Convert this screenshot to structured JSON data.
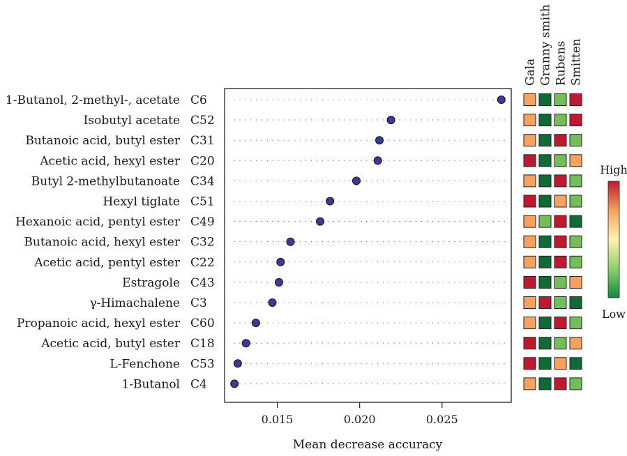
{
  "chart_data": {
    "type": "scatter",
    "xlabel": "Mean decrease accuracy",
    "xlim": [
      0.0118,
      0.0292
    ],
    "xticks": [
      "0.015",
      "0.020",
      "0.025"
    ],
    "xtick_values": [
      0.015,
      0.02,
      0.025
    ],
    "grid": false,
    "point_color": "#3b3a98",
    "rows": [
      {
        "name": "1-Butanol, 2-methyl-, acetate",
        "code": "C6",
        "value": 0.0286
      },
      {
        "name": "Isobutyl acetate",
        "code": "C52",
        "value": 0.0219
      },
      {
        "name": "Butanoic acid, butyl ester",
        "code": "C31",
        "value": 0.0212
      },
      {
        "name": "Acetic acid, hexyl ester",
        "code": "C20",
        "value": 0.0211
      },
      {
        "name": "Butyl 2-methylbutanoate",
        "code": "C34",
        "value": 0.0198
      },
      {
        "name": "Hexyl tiglate",
        "code": "C51",
        "value": 0.0182
      },
      {
        "name": "Hexanoic acid, pentyl ester",
        "code": "C49",
        "value": 0.0176
      },
      {
        "name": "Butanoic acid, hexyl ester",
        "code": "C32",
        "value": 0.0158
      },
      {
        "name": "Acetic acid, pentyl ester",
        "code": "C22",
        "value": 0.0152
      },
      {
        "name": "Estragole",
        "code": "C43",
        "value": 0.0151
      },
      {
        "name": "γ-Himachalene",
        "code": "C3",
        "value": 0.0147
      },
      {
        "name": "Propanoic acid, hexyl ester",
        "code": "C60",
        "value": 0.0137
      },
      {
        "name": "Acetic acid, butyl ester",
        "code": "C18",
        "value": 0.0131
      },
      {
        "name": "L-Fenchone",
        "code": "C53",
        "value": 0.0126
      },
      {
        "name": "1-Butanol",
        "code": "C4",
        "value": 0.0124
      }
    ],
    "heatmap": {
      "columns": [
        "Gala",
        "Granny smith",
        "Rubens",
        "Smitten"
      ],
      "levels": [
        "dark-green",
        "light-green",
        "orange",
        "red"
      ],
      "level_colors": {
        "dark-green": "#0e6b35",
        "light-green": "#74bd58",
        "orange": "#f5a25f",
        "red": "#c0182e"
      },
      "cells": [
        [
          "orange",
          "dark-green",
          "light-green",
          "red"
        ],
        [
          "orange",
          "dark-green",
          "light-green",
          "red"
        ],
        [
          "orange",
          "dark-green",
          "red",
          "light-green"
        ],
        [
          "red",
          "dark-green",
          "light-green",
          "orange"
        ],
        [
          "orange",
          "dark-green",
          "red",
          "light-green"
        ],
        [
          "red",
          "dark-green",
          "orange",
          "light-green"
        ],
        [
          "orange",
          "light-green",
          "red",
          "dark-green"
        ],
        [
          "orange",
          "dark-green",
          "red",
          "light-green"
        ],
        [
          "orange",
          "dark-green",
          "red",
          "light-green"
        ],
        [
          "red",
          "dark-green",
          "light-green",
          "orange"
        ],
        [
          "orange",
          "red",
          "light-green",
          "dark-green"
        ],
        [
          "orange",
          "dark-green",
          "red",
          "light-green"
        ],
        [
          "red",
          "dark-green",
          "light-green",
          "orange"
        ],
        [
          "red",
          "dark-green",
          "orange",
          "dark-green"
        ],
        [
          "orange",
          "dark-green",
          "red",
          "light-green"
        ]
      ]
    },
    "colorbar": {
      "high_label": "High",
      "low_label": "Low",
      "gradient": [
        "#0e8a43",
        "#8fcf6a",
        "#fff3b0",
        "#f5a25f",
        "#c0182e"
      ]
    }
  }
}
